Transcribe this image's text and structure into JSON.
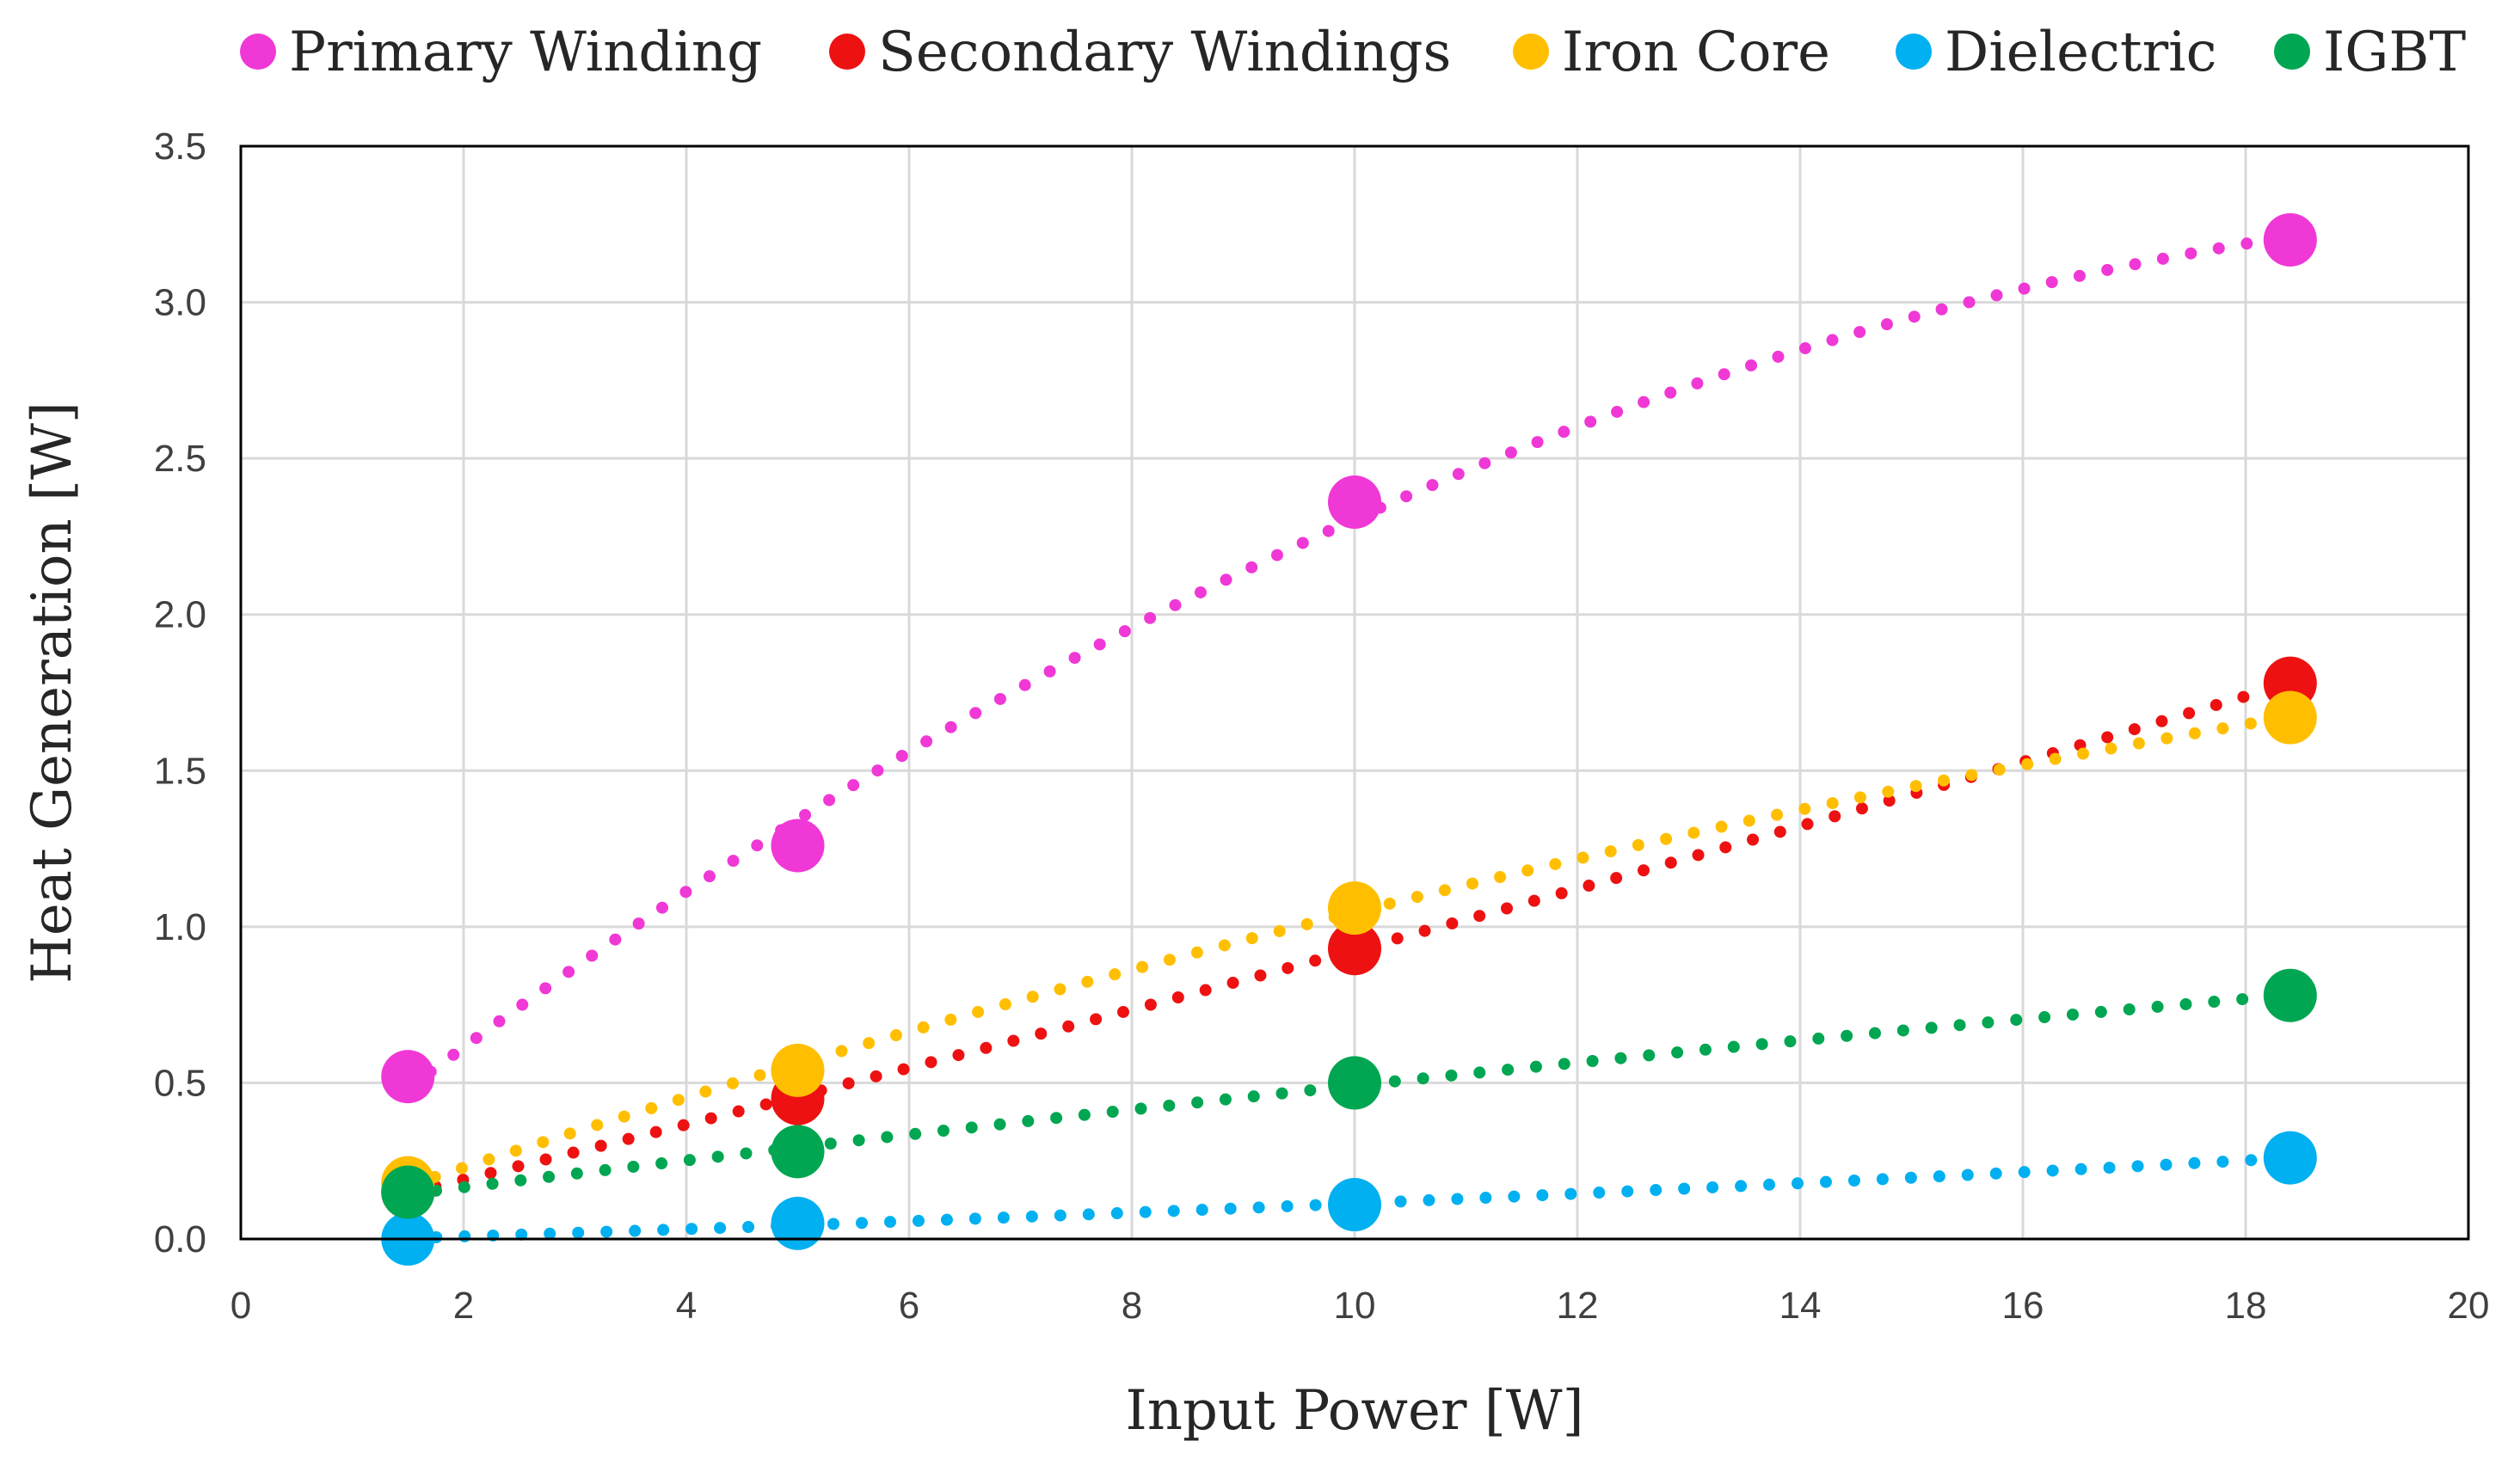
{
  "chart_data": {
    "type": "scatter",
    "title": "",
    "xlabel": "Input Power [W]",
    "ylabel": "Heat Generation [W]",
    "xlim": [
      0,
      20
    ],
    "ylim": [
      0,
      3.5
    ],
    "xticks": [
      0,
      2,
      4,
      6,
      8,
      10,
      12,
      14,
      16,
      18,
      20
    ],
    "yticks": [
      0.0,
      0.5,
      1.0,
      1.5,
      2.0,
      2.5,
      3.0,
      3.5
    ],
    "ytick_labels": [
      "0.0",
      "0.5",
      "1.0",
      "1.5",
      "2.0",
      "2.5",
      "3.0",
      "3.5"
    ],
    "grid": true,
    "legend_position": "top",
    "trendline": "dotted polynomial",
    "x": [
      1.5,
      5.0,
      10.0,
      18.4
    ],
    "series": [
      {
        "name": "Primary Winding",
        "color": "#f038d6",
        "values": [
          0.52,
          1.26,
          2.36,
          3.2
        ]
      },
      {
        "name": "Secondary Windings",
        "color": "#ee1111",
        "values": [
          0.15,
          0.45,
          0.93,
          1.78
        ]
      },
      {
        "name": "Iron Core",
        "color": "#ffbf00",
        "values": [
          0.18,
          0.54,
          1.06,
          1.67
        ]
      },
      {
        "name": "Dielectric",
        "color": "#00b0f0",
        "values": [
          0.0,
          0.05,
          0.11,
          0.26
        ]
      },
      {
        "name": "IGBT",
        "color": "#00a651",
        "values": [
          0.15,
          0.28,
          0.5,
          0.78
        ]
      }
    ]
  }
}
